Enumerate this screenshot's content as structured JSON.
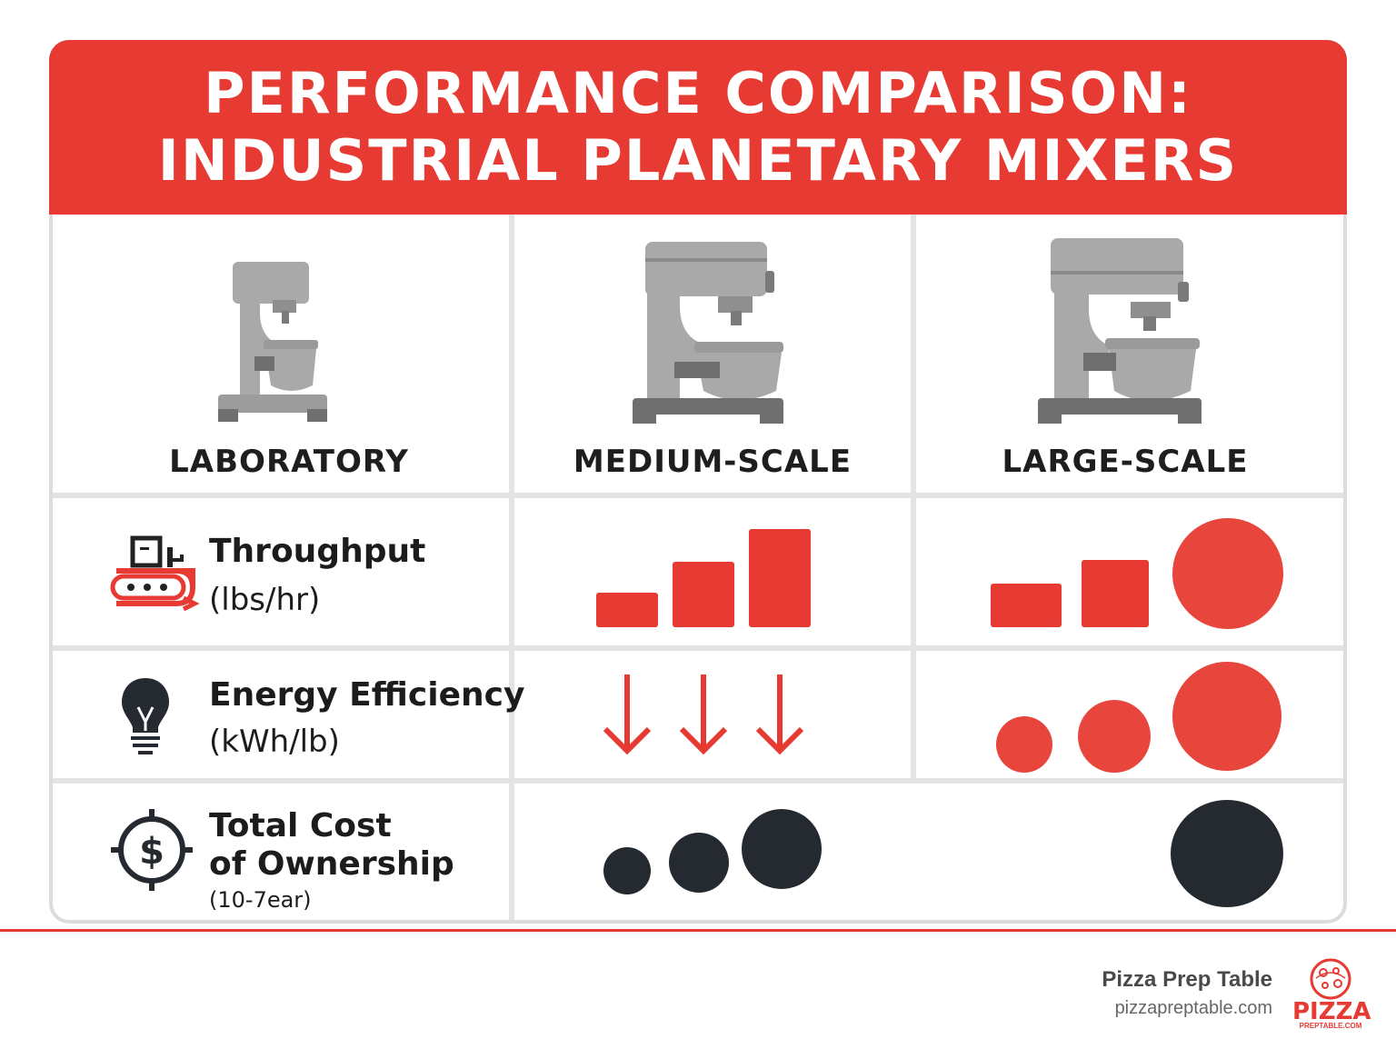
{
  "title": {
    "line1": "PERFORMANCE COMPARISON:",
    "line2": "INDUSTRIAL PLANETARY MIXERS"
  },
  "tiers": [
    {
      "label": "LABORATORY",
      "icon": "stand-mixer-small-icon"
    },
    {
      "label": "MEDIUM-SCALE",
      "icon": "stand-mixer-medium-icon"
    },
    {
      "label": "LARGE-SCALE",
      "icon": "stand-mixer-large-icon"
    }
  ],
  "metrics": [
    {
      "title": "Throughput",
      "unit": "(lbs/hr)",
      "icon": "conveyor-icon"
    },
    {
      "title": "Energy Efficiency",
      "unit": "(kWh/lb)",
      "icon": "lightbulb-icon"
    },
    {
      "title_line1": "Total Cost",
      "title_line2": "of Ownership",
      "unit": "(10-7ear)",
      "icon": "dollar-target-icon"
    }
  ],
  "footer": {
    "brand_name": "Pizza Prep Table",
    "brand_url": "pizzapreptable.com",
    "logo_word": "PIZZA",
    "logo_sub": "PREPTABLE.COM"
  },
  "colors": {
    "accent": "#e63a33",
    "dark": "#252a30",
    "mixer_gray": "#a9a9a9",
    "mixer_dark": "#6f6f6f"
  }
}
